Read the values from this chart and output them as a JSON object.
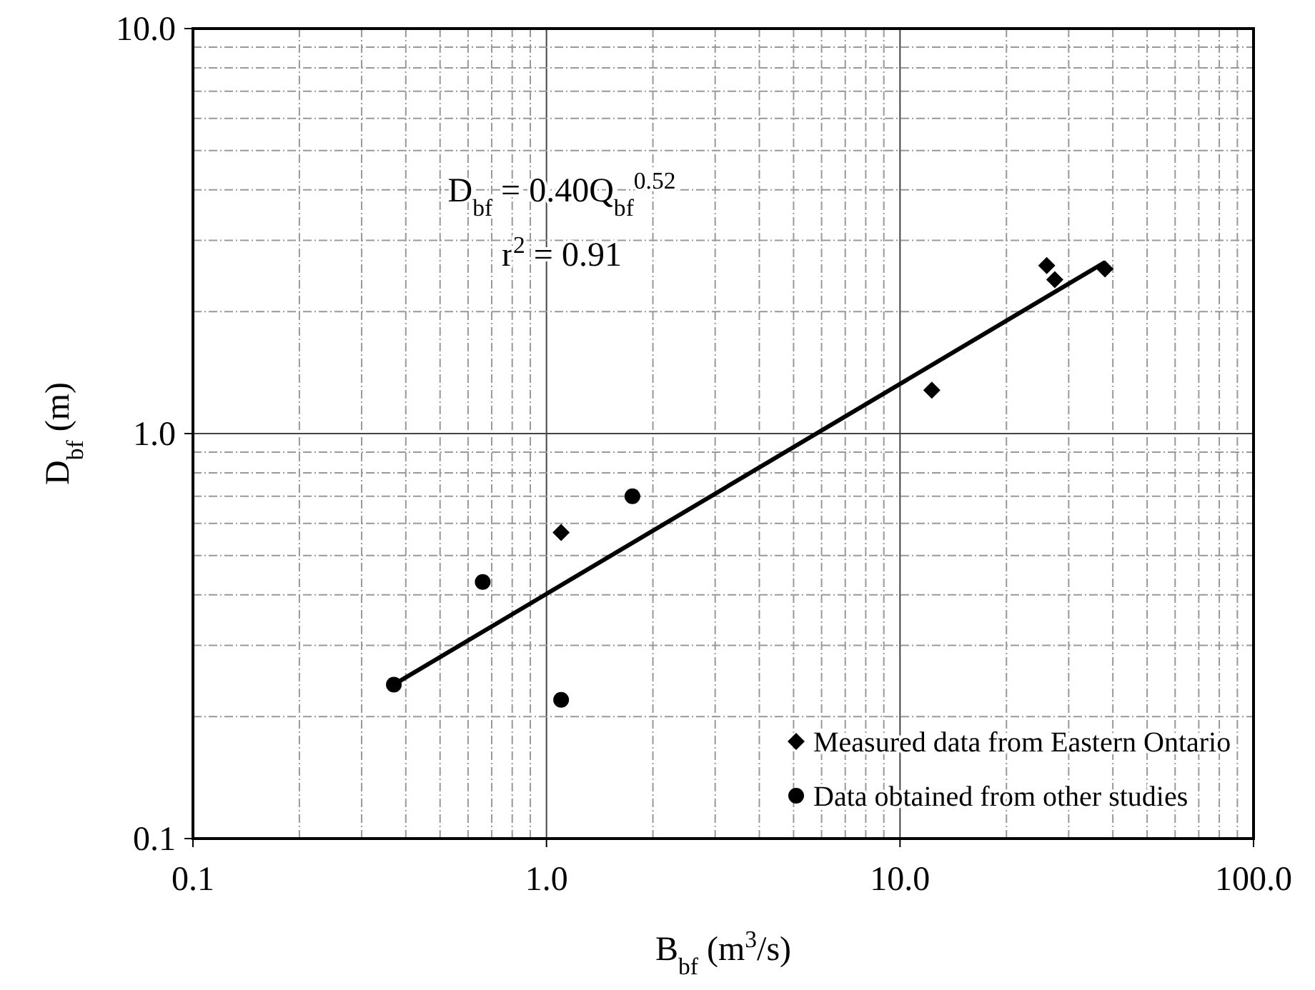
{
  "chart_data": {
    "type": "scatter",
    "xlabel": "B$_{bf}$ (m$^{3}$/s)",
    "ylabel": "D$_{bf}$ (m)",
    "log": "xy",
    "grid": true,
    "legend": "bottom right",
    "xlim": [
      0.1,
      100
    ],
    "ylim": [
      0.1,
      10
    ],
    "xticks": [
      {
        "value": 0.1,
        "label": "0.1"
      },
      {
        "value": 0.2,
        "label": null
      },
      {
        "value": 0.3,
        "label": null
      },
      {
        "value": 0.4,
        "label": null
      },
      {
        "value": 0.5,
        "label": null
      },
      {
        "value": 0.6,
        "label": null
      },
      {
        "value": 0.7,
        "label": null
      },
      {
        "value": 0.8,
        "label": null
      },
      {
        "value": 0.9,
        "label": null
      },
      {
        "value": 1,
        "label": "1.0"
      },
      {
        "value": 2,
        "label": null
      },
      {
        "value": 3,
        "label": null
      },
      {
        "value": 4,
        "label": null
      },
      {
        "value": 5,
        "label": null
      },
      {
        "value": 6,
        "label": null
      },
      {
        "value": 7,
        "label": null
      },
      {
        "value": 8,
        "label": null
      },
      {
        "value": 9,
        "label": null
      },
      {
        "value": 10,
        "label": "10.0"
      },
      {
        "value": 20,
        "label": null
      },
      {
        "value": 30,
        "label": null
      },
      {
        "value": 40,
        "label": null
      },
      {
        "value": 50,
        "label": null
      },
      {
        "value": 60,
        "label": null
      },
      {
        "value": 70,
        "label": null
      },
      {
        "value": 80,
        "label": null
      },
      {
        "value": 90,
        "label": null
      },
      {
        "value": 100,
        "label": "100.0"
      }
    ],
    "yticks": [
      {
        "value": 0.1,
        "label": "0.1"
      },
      {
        "value": 0.2,
        "label": null
      },
      {
        "value": 0.3,
        "label": null
      },
      {
        "value": 0.4,
        "label": null
      },
      {
        "value": 0.5,
        "label": null
      },
      {
        "value": 0.6,
        "label": null
      },
      {
        "value": 0.7,
        "label": null
      },
      {
        "value": 0.8,
        "label": null
      },
      {
        "value": 0.9,
        "label": null
      },
      {
        "value": 1,
        "label": "1.0"
      },
      {
        "value": 2,
        "label": null
      },
      {
        "value": 3,
        "label": null
      },
      {
        "value": 4,
        "label": null
      },
      {
        "value": 5,
        "label": null
      },
      {
        "value": 6,
        "label": null
      },
      {
        "value": 7,
        "label": null
      },
      {
        "value": 8,
        "label": null
      },
      {
        "value": 9,
        "label": null
      },
      {
        "value": 10,
        "label": "10.0"
      }
    ],
    "annotations": [
      "D$_{bf}$ = 0.40Q$_{bf}$$^{0.52}$",
      "r$^{2}$ = 0.91"
    ],
    "series": [
      {
        "name": "Measured data from Eastern Ontario",
        "color": "#000000",
        "marker": "diamond",
        "x": [
          1.1,
          12.3,
          26,
          27.4,
          38
        ],
        "values": [
          0.57,
          1.28,
          2.6,
          2.4,
          2.55
        ]
      },
      {
        "name": "Data obtained from other studies",
        "color": "#000000",
        "marker": "circle",
        "x": [
          0.37,
          0.66,
          1.1,
          1.75
        ],
        "values": [
          0.24,
          0.43,
          0.22,
          0.7
        ]
      },
      {
        "type": "line",
        "color": "#000000",
        "marker": "none",
        "x": [
          0.37,
          38
        ],
        "values": [
          0.24,
          2.65
        ]
      }
    ]
  }
}
